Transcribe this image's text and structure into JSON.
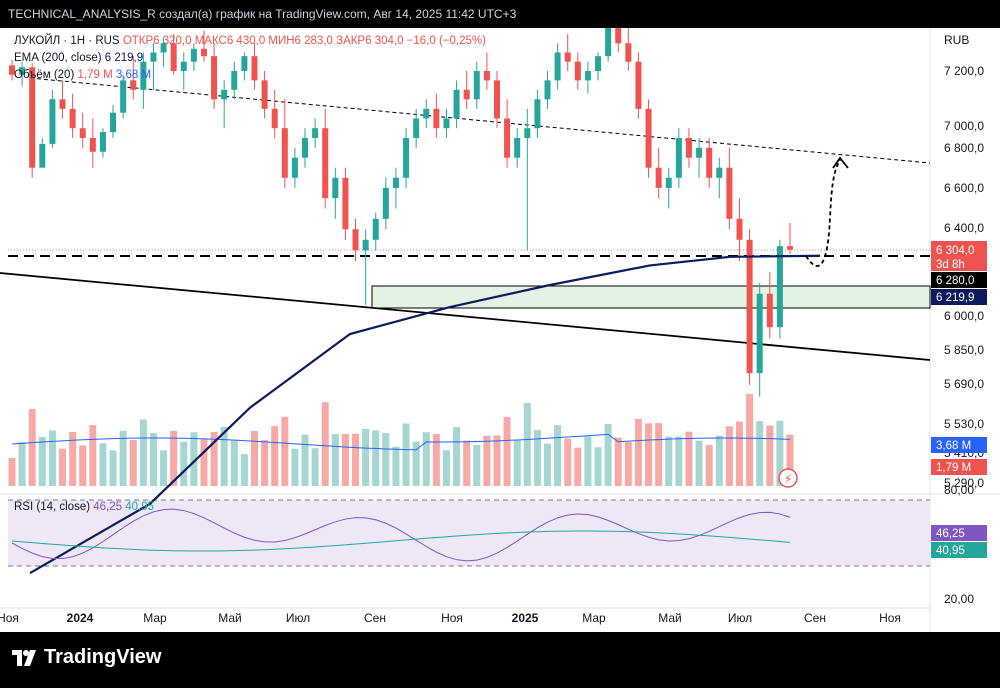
{
  "header": {
    "title": "TECHNICAL_ANALYSIS_R создал(а) график на TradingView.com, Авг 14, 2025 11:42 UTC+3"
  },
  "legend": {
    "symbol": "ЛУКОЙЛ · 1Н · RUS",
    "ohlc": "ОТКР6 320,0 МАКС6 430,0 МИН6 283,0 ЗАКР6 304,0 −16,0 (−0,25%)",
    "ema": "EMA (200, close)",
    "ema_value": "6 219,9",
    "volume": "Объём (20)",
    "volume_value1": "1,79 M",
    "volume_value2": "3,68 M",
    "rsi": "RSI (14, close)",
    "rsi_value1": "46,25",
    "rsi_value2": "40,95"
  },
  "currency": "RUB",
  "price_tags": {
    "last": "6 304,0",
    "countdown": "3d 8h",
    "level": "6 280,0",
    "ema": "6 219,9",
    "vol_ma": "3,68 M",
    "vol": "1,79 M",
    "rsi": "46,25",
    "rsi_ma": "40,95"
  },
  "footer": {
    "brand": "TradingView"
  },
  "colors": {
    "up": "#26a69a",
    "down": "#ef5350",
    "ema": "#0d1b5e",
    "zone": "#e3f3e3",
    "rsi_line": "#7e57c2",
    "rsi_ma": "#26a69a",
    "vol_ma": "#2962ff"
  },
  "chart_data": {
    "type": "candlestick",
    "price_axis": {
      "ticks": [
        "7 200,0",
        "7 000,0",
        "6 800,0",
        "6 600,0",
        "6 400,0",
        "6 000,0",
        "5 850,0",
        "5 690,0",
        "5 530,0",
        "5 410,0",
        "5 290,0"
      ],
      "scale": "log"
    },
    "rsi_axis": {
      "ticks": [
        "80,00",
        "20,00"
      ],
      "bands": [
        70,
        30
      ]
    },
    "time_axis": {
      "ticks": [
        "Ноя",
        "2024",
        "Мар",
        "Май",
        "Июл",
        "Сен",
        "Ноя",
        "2025",
        "Мар",
        "Май",
        "Июл",
        "Сен",
        "Ноя"
      ]
    },
    "candles_ohlc": [
      [
        7230,
        7260,
        7150,
        7180
      ],
      [
        7180,
        7250,
        7120,
        7220
      ],
      [
        7220,
        7240,
        6650,
        6700
      ],
      [
        6700,
        6850,
        6720,
        6820
      ],
      [
        6820,
        7100,
        6800,
        7050
      ],
      [
        7050,
        7150,
        6950,
        7000
      ],
      [
        7000,
        7080,
        6850,
        6900
      ],
      [
        6900,
        6980,
        6800,
        6850
      ],
      [
        6850,
        6950,
        6700,
        6780
      ],
      [
        6780,
        6900,
        6750,
        6880
      ],
      [
        6880,
        7020,
        6850,
        6980
      ],
      [
        6980,
        7180,
        6950,
        7150
      ],
      [
        7150,
        7280,
        7050,
        7100
      ],
      [
        7100,
        7300,
        7000,
        7250
      ],
      [
        7250,
        7350,
        7100,
        7300
      ],
      [
        7300,
        7380,
        7220,
        7350
      ],
      [
        7350,
        7400,
        7180,
        7200
      ],
      [
        7200,
        7300,
        7100,
        7250
      ],
      [
        7250,
        7350,
        7200,
        7320
      ],
      [
        7320,
        7420,
        7250,
        7280
      ],
      [
        7280,
        7350,
        7000,
        7050
      ],
      [
        7050,
        7150,
        6900,
        7100
      ],
      [
        7100,
        7250,
        7050,
        7200
      ],
      [
        7200,
        7300,
        7150,
        7280
      ],
      [
        7280,
        7350,
        7100,
        7150
      ],
      [
        7150,
        7200,
        6950,
        7000
      ],
      [
        7000,
        7100,
        6850,
        6900
      ],
      [
        6900,
        7050,
        6600,
        6650
      ],
      [
        6650,
        6800,
        6600,
        6750
      ],
      [
        6750,
        6900,
        6700,
        6850
      ],
      [
        6850,
        6950,
        6800,
        6900
      ],
      [
        6900,
        7000,
        6500,
        6550
      ],
      [
        6550,
        6700,
        6450,
        6650
      ],
      [
        6650,
        6700,
        6350,
        6400
      ],
      [
        6400,
        6450,
        6250,
        6300
      ],
      [
        6300,
        6400,
        6050,
        6350
      ],
      [
        6350,
        6480,
        6300,
        6450
      ],
      [
        6450,
        6650,
        6400,
        6600
      ],
      [
        6600,
        6700,
        6500,
        6650
      ],
      [
        6650,
        6900,
        6600,
        6850
      ],
      [
        6850,
        7000,
        6800,
        6950
      ],
      [
        6950,
        7050,
        6900,
        7000
      ],
      [
        7000,
        7080,
        6850,
        6900
      ],
      [
        6900,
        7000,
        6850,
        6950
      ],
      [
        6950,
        7150,
        6900,
        7100
      ],
      [
        7100,
        7200,
        7000,
        7050
      ],
      [
        7050,
        7250,
        7000,
        7200
      ],
      [
        7200,
        7300,
        7100,
        7150
      ],
      [
        7150,
        7200,
        6900,
        6950
      ],
      [
        6950,
        7050,
        6700,
        6750
      ],
      [
        6750,
        6900,
        6700,
        6850
      ],
      [
        6850,
        7000,
        6300,
        6900
      ],
      [
        6900,
        7100,
        6850,
        7050
      ],
      [
        7050,
        7200,
        7000,
        7150
      ],
      [
        7150,
        7350,
        7100,
        7300
      ],
      [
        7300,
        7400,
        7200,
        7250
      ],
      [
        7250,
        7300,
        7100,
        7150
      ],
      [
        7150,
        7250,
        7080,
        7200
      ],
      [
        7200,
        7300,
        7150,
        7280
      ],
      [
        7280,
        7500,
        7250,
        7450
      ],
      [
        7450,
        7500,
        7300,
        7350
      ],
      [
        7350,
        7450,
        7200,
        7250
      ],
      [
        7250,
        7300,
        6950,
        7000
      ],
      [
        7000,
        7050,
        6650,
        6700
      ],
      [
        6700,
        6800,
        6550,
        6600
      ],
      [
        6600,
        6700,
        6500,
        6650
      ],
      [
        6650,
        6900,
        6600,
        6850
      ],
      [
        6850,
        6900,
        6700,
        6750
      ],
      [
        6750,
        6850,
        6650,
        6800
      ],
      [
        6800,
        6850,
        6600,
        6650
      ],
      [
        6650,
        6750,
        6550,
        6700
      ],
      [
        6700,
        6800,
        6400,
        6450
      ],
      [
        6450,
        6550,
        6250,
        6350
      ],
      [
        6350,
        6400,
        5700,
        5750
      ],
      [
        5750,
        6150,
        5650,
        6100
      ],
      [
        6100,
        6200,
        5900,
        5950
      ],
      [
        5950,
        6350,
        5900,
        6320
      ],
      [
        6320,
        6430,
        6283,
        6304
      ]
    ],
    "ema200": [
      [
        0,
        5270
      ],
      [
        120,
        5450
      ],
      [
        220,
        5700
      ],
      [
        320,
        5920
      ],
      [
        420,
        6040
      ],
      [
        520,
        6140
      ],
      [
        620,
        6230
      ],
      [
        700,
        6270
      ],
      [
        790,
        6275
      ]
    ],
    "levels": {
      "dashed_support": 6280,
      "zone_top": 6150,
      "zone_bottom": 6080
    },
    "volume_ma": "line",
    "rsi_series": "line"
  }
}
